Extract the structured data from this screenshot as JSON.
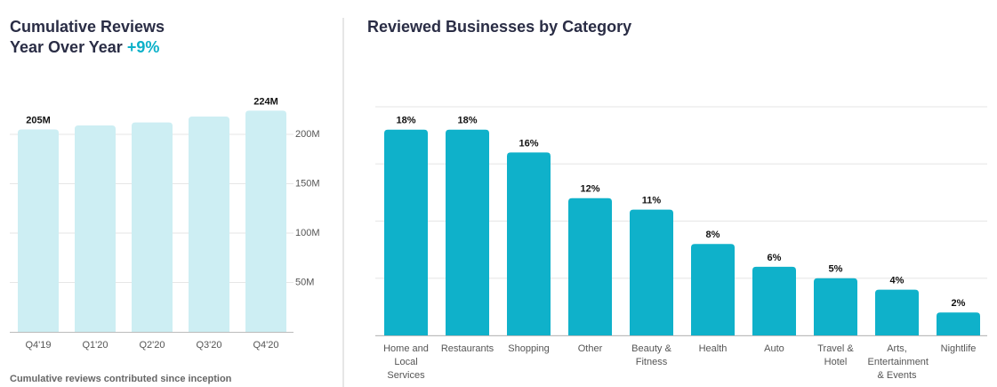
{
  "left": {
    "title": "Cumulative Reviews",
    "subtitle": "Year Over Year",
    "highlight": "+9%",
    "footnote": "Cumulative reviews contributed since inception",
    "chart_data": {
      "type": "bar",
      "categories": [
        "Q4'19",
        "Q1'20",
        "Q2'20",
        "Q3'20",
        "Q4'20"
      ],
      "values": [
        205,
        209,
        212,
        218,
        224
      ],
      "value_labels": [
        "205M",
        null,
        null,
        null,
        "224M"
      ],
      "color": "#cdeef3",
      "ylim": [
        0,
        225
      ],
      "yticks": [
        {
          "value": 50,
          "label": "50M"
        },
        {
          "value": 100,
          "label": "100M"
        },
        {
          "value": 150,
          "label": "150M"
        },
        {
          "value": 200,
          "label": "200M"
        }
      ],
      "grid": true
    }
  },
  "right": {
    "chart_data": {
      "type": "bar",
      "title": "Reviewed Businesses by Category",
      "categories": [
        "Home and Local Services",
        "Restaurants",
        "Shopping",
        "Other",
        "Beauty & Fitness",
        "Health",
        "Auto",
        "Travel & Hotel",
        "Arts, Entertainment & Events",
        "Nightlife"
      ],
      "values": [
        18,
        18,
        16,
        12,
        11,
        8,
        6,
        5,
        4,
        2
      ],
      "value_labels": [
        "18%",
        "18%",
        "16%",
        "12%",
        "11%",
        "8%",
        "6%",
        "5%",
        "4%",
        "2%"
      ],
      "color": "#0fb1ca",
      "ylim": [
        0,
        20
      ],
      "yticks": [
        0,
        5,
        10,
        15,
        20
      ],
      "grid": true
    }
  }
}
